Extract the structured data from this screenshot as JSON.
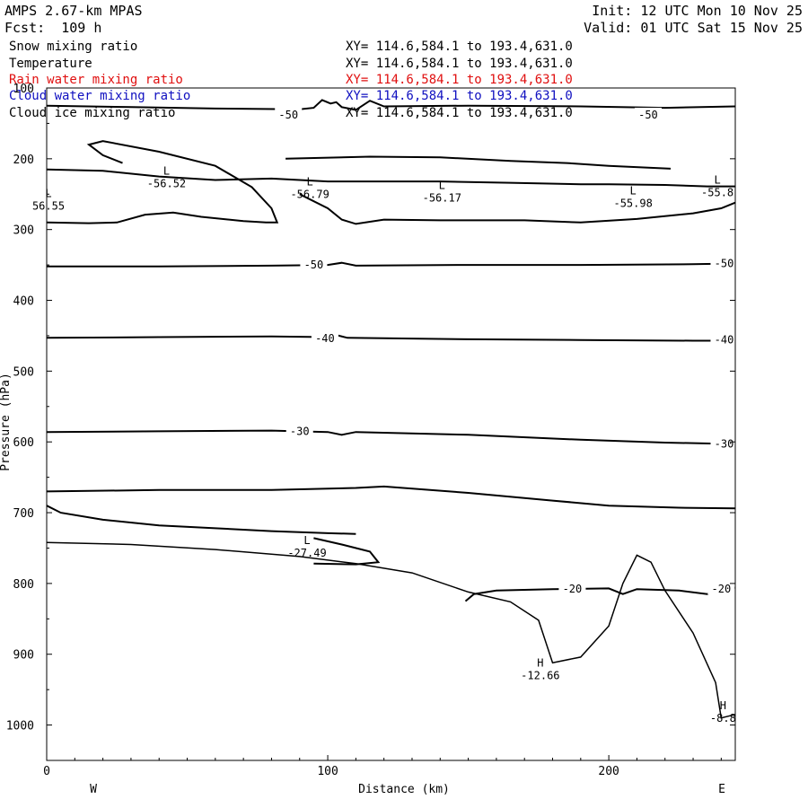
{
  "header": {
    "model": "AMPS 2.67-km MPAS",
    "forecast": "Fcst:  109 h",
    "init": "Init: 12 UTC Mon 10 Nov 25",
    "valid": "Valid: 01 UTC Sat 15 Nov 25"
  },
  "fields": [
    {
      "name": "Snow mixing ratio",
      "xy": "XY= 114.6,584.1 to 193.4,631.0",
      "color": "#000000"
    },
    {
      "name": "Temperature",
      "xy": "XY= 114.6,584.1 to 193.4,631.0",
      "color": "#000000"
    },
    {
      "name": "Rain water mixing ratio",
      "xy": "XY= 114.6,584.1 to 193.4,631.0",
      "color": "#e01010"
    },
    {
      "name": "Cloud water mixing ratio",
      "xy": "XY= 114.6,584.1 to 193.4,631.0",
      "color": "#1010c0"
    },
    {
      "name": "Cloud ice mixing ratio",
      "xy": "XY= 114.6,584.1 to 193.4,631.0",
      "color": "#000000"
    }
  ],
  "chart_data": {
    "type": "line",
    "title": "",
    "xlabel": "Distance (km)",
    "ylabel": "Pressure (hPa)",
    "xlim": [
      0,
      245
    ],
    "ylim": [
      1050,
      100
    ],
    "x_ticks": [
      0,
      100,
      200
    ],
    "y_ticks": [
      100,
      200,
      300,
      400,
      500,
      600,
      700,
      800,
      900,
      1000
    ],
    "x_end_labels": {
      "left": "W",
      "right": "E"
    },
    "grid": false,
    "contours": [
      {
        "level": -50,
        "points": [
          [
            0,
            125
          ],
          [
            30,
            127
          ],
          [
            60,
            129
          ],
          [
            90,
            130
          ],
          [
            95,
            128
          ],
          [
            98,
            117
          ],
          [
            101,
            122
          ],
          [
            103,
            120
          ],
          [
            105,
            127
          ],
          [
            110,
            131
          ],
          [
            115,
            118
          ],
          [
            120,
            126
          ],
          [
            150,
            125
          ],
          [
            190,
            126
          ],
          [
            220,
            128
          ],
          [
            245,
            126
          ]
        ]
      },
      {
        "level": -50,
        "points": [
          [
            0,
            352
          ],
          [
            40,
            352
          ],
          [
            80,
            351
          ],
          [
            100,
            350
          ],
          [
            105,
            347
          ],
          [
            110,
            351
          ],
          [
            150,
            350
          ],
          [
            190,
            350
          ],
          [
            230,
            349
          ],
          [
            245,
            348
          ]
        ]
      },
      {
        "level": -40,
        "points": [
          [
            0,
            453
          ],
          [
            40,
            452
          ],
          [
            80,
            451
          ],
          [
            100,
            452
          ],
          [
            103,
            449
          ],
          [
            107,
            453
          ],
          [
            150,
            455
          ],
          [
            190,
            456
          ],
          [
            230,
            457
          ],
          [
            245,
            457
          ]
        ]
      },
      {
        "level": -30,
        "points": [
          [
            0,
            586
          ],
          [
            40,
            585
          ],
          [
            80,
            584
          ],
          [
            100,
            586
          ],
          [
            105,
            590
          ],
          [
            110,
            586
          ],
          [
            150,
            590
          ],
          [
            190,
            597
          ],
          [
            220,
            601
          ],
          [
            245,
            603
          ]
        ]
      },
      {
        "level": -20,
        "points": [
          [
            149,
            825
          ],
          [
            152,
            815
          ],
          [
            160,
            810
          ],
          [
            180,
            808
          ],
          [
            200,
            807
          ],
          [
            205,
            815
          ],
          [
            210,
            808
          ],
          [
            225,
            810
          ],
          [
            235,
            815
          ],
          [
            240,
            808
          ],
          [
            245,
            806
          ]
        ]
      },
      {
        "level": -55,
        "points": [
          [
            0,
            215
          ],
          [
            20,
            217
          ],
          [
            40,
            225
          ],
          [
            60,
            230
          ],
          [
            80,
            228
          ],
          [
            100,
            232
          ],
          [
            120,
            232
          ],
          [
            140,
            232
          ],
          [
            165,
            234
          ],
          [
            190,
            236
          ],
          [
            200,
            236
          ],
          [
            220,
            237
          ],
          [
            235,
            239
          ],
          [
            245,
            239
          ]
        ]
      },
      {
        "level": -55,
        "points": [
          [
            0,
            290
          ],
          [
            15,
            291
          ],
          [
            25,
            290
          ],
          [
            35,
            279
          ],
          [
            45,
            276
          ],
          [
            55,
            282
          ],
          [
            70,
            288
          ],
          [
            78,
            290
          ],
          [
            82,
            290
          ],
          [
            80,
            270
          ],
          [
            73,
            240
          ],
          [
            60,
            210
          ],
          [
            40,
            190
          ],
          [
            20,
            175
          ],
          [
            15,
            180
          ],
          [
            20,
            195
          ],
          [
            27,
            206
          ]
        ]
      },
      {
        "level": -55,
        "points": [
          [
            85,
            200
          ],
          [
            115,
            197
          ],
          [
            140,
            198
          ],
          [
            165,
            203
          ],
          [
            185,
            206
          ],
          [
            200,
            210
          ],
          [
            222,
            214
          ]
        ]
      },
      {
        "level": -55,
        "points": [
          [
            90,
            250
          ],
          [
            100,
            270
          ],
          [
            105,
            286
          ],
          [
            110,
            292
          ],
          [
            120,
            286
          ],
          [
            140,
            287
          ],
          [
            170,
            287
          ],
          [
            190,
            290
          ],
          [
            210,
            285
          ],
          [
            230,
            277
          ],
          [
            240,
            270
          ],
          [
            245,
            262
          ]
        ]
      },
      {
        "level": -27,
        "points": [
          [
            0,
            670
          ],
          [
            40,
            668
          ],
          [
            80,
            668
          ],
          [
            110,
            665
          ],
          [
            120,
            663
          ],
          [
            150,
            672
          ],
          [
            180,
            683
          ],
          [
            200,
            690
          ],
          [
            225,
            693
          ],
          [
            245,
            694
          ]
        ]
      },
      {
        "level": -27,
        "points": [
          [
            0,
            690
          ],
          [
            5,
            700
          ],
          [
            20,
            710
          ],
          [
            40,
            718
          ],
          [
            60,
            722
          ],
          [
            80,
            726
          ],
          [
            100,
            729
          ],
          [
            110,
            730
          ]
        ]
      },
      {
        "level": -27,
        "points": [
          [
            95,
            736
          ],
          [
            105,
            745
          ],
          [
            115,
            755
          ],
          [
            118,
            770
          ],
          [
            110,
            773
          ],
          [
            95,
            772
          ]
        ]
      }
    ],
    "terrain_points": [
      [
        0,
        742
      ],
      [
        30,
        745
      ],
      [
        60,
        752
      ],
      [
        90,
        762
      ],
      [
        110,
        772
      ],
      [
        130,
        785
      ],
      [
        150,
        812
      ],
      [
        165,
        826
      ],
      [
        175,
        852
      ],
      [
        180,
        912
      ],
      [
        190,
        904
      ],
      [
        200,
        860
      ],
      [
        205,
        800
      ],
      [
        210,
        760
      ],
      [
        215,
        770
      ],
      [
        220,
        810
      ],
      [
        230,
        870
      ],
      [
        238,
        940
      ],
      [
        240,
        990
      ],
      [
        245,
        985
      ]
    ],
    "extrema": [
      {
        "kind": "L",
        "value": "-56.52",
        "x": 42,
        "p": 230
      },
      {
        "kind": "L",
        "value": "56.55",
        "x": 0,
        "p": 262
      },
      {
        "kind": "L",
        "value": "-56.79",
        "x": 93,
        "p": 245
      },
      {
        "kind": "L",
        "value": "-56.17",
        "x": 140,
        "p": 250
      },
      {
        "kind": "L",
        "value": "-55.98",
        "x": 208,
        "p": 258
      },
      {
        "kind": "L",
        "value": "-55.8",
        "x": 238,
        "p": 243
      },
      {
        "kind": "L",
        "value": "-27.49",
        "x": 92,
        "p": 752
      },
      {
        "kind": "H",
        "value": "-12.66",
        "x": 175,
        "p": 925
      },
      {
        "kind": "H",
        "value": "-8.8",
        "x": 240,
        "p": 985
      }
    ],
    "contour_labels": [
      {
        "text": "-50",
        "x": 86,
        "p": 138
      },
      {
        "text": "-50",
        "x": 214,
        "p": 138
      },
      {
        "text": "-50",
        "x": 95,
        "p": 350
      },
      {
        "text": "-50",
        "x": 241,
        "p": 348
      },
      {
        "text": "-40",
        "x": 99,
        "p": 454
      },
      {
        "text": "-40",
        "x": 241,
        "p": 456
      },
      {
        "text": "-30",
        "x": 90,
        "p": 585
      },
      {
        "text": "-30",
        "x": 241,
        "p": 603
      },
      {
        "text": "-20",
        "x": 187,
        "p": 808
      },
      {
        "text": "-20",
        "x": 240,
        "p": 808
      }
    ]
  }
}
